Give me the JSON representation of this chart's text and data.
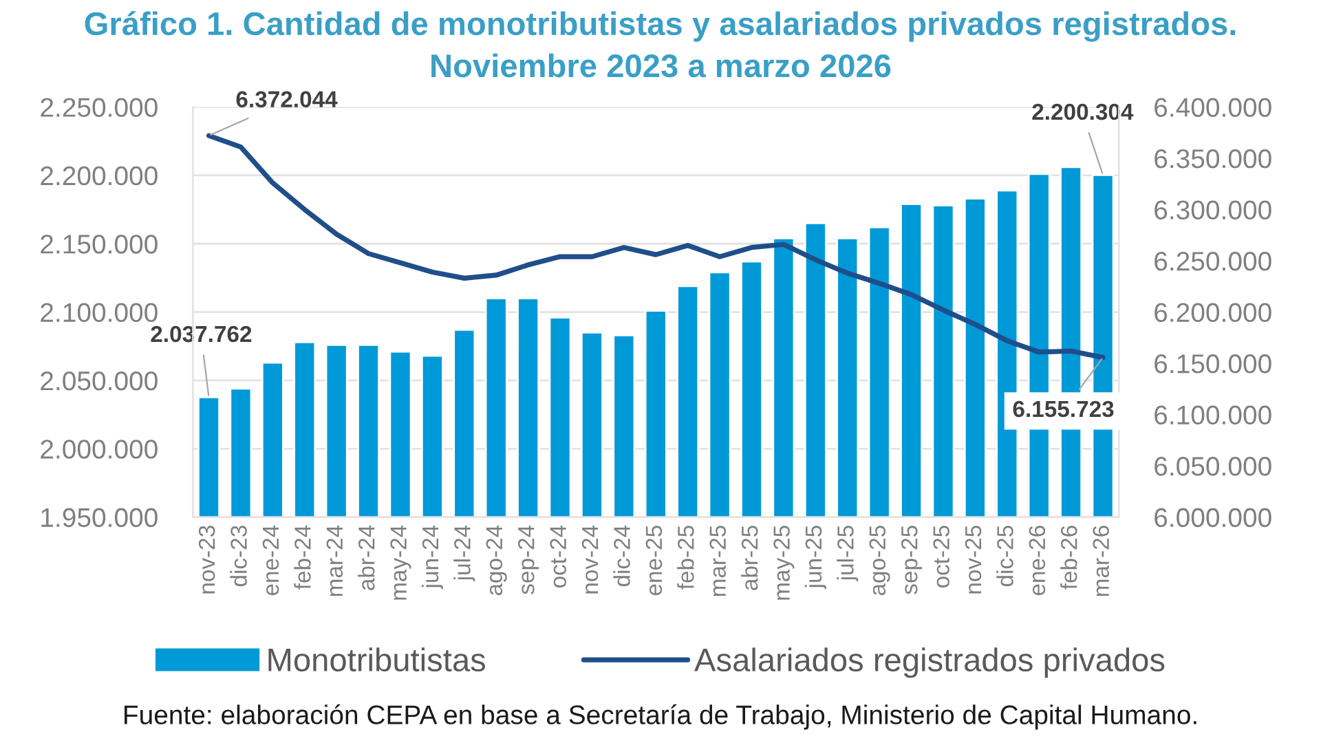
{
  "chart_data": {
    "type": "bar",
    "title": "Gráfico 1. Cantidad de monotributistas y asalariados privados registrados.",
    "subtitle": "Noviembre 2023 a marzo 2026",
    "categories": [
      "nov-23",
      "dic-23",
      "ene-24",
      "feb-24",
      "mar-24",
      "abr-24",
      "may-24",
      "jun-24",
      "jul-24",
      "ago-24",
      "sep-24",
      "oct-24",
      "nov-24",
      "dic-24",
      "ene-25",
      "feb-25",
      "mar-25",
      "abr-25",
      "may-25",
      "jun-25",
      "jul-25",
      "ago-25",
      "sep-25",
      "oct-25",
      "nov-25",
      "dic-25",
      "ene-26",
      "feb-26",
      "mar-26"
    ],
    "series": [
      {
        "name": "Monotributistas",
        "color": "#0099d8",
        "values": [
          2037762,
          2044000,
          2063000,
          2078000,
          2076000,
          2076000,
          2071000,
          2068000,
          2087000,
          2110000,
          2110000,
          2096000,
          2085000,
          2083000,
          2101000,
          2119000,
          2129000,
          2137000,
          2154000,
          2165000,
          2154000,
          2162000,
          2179000,
          2178000,
          2183000,
          2189000,
          2201000,
          2206000,
          2200304
        ],
        "value_labels": [
          "2.037.762",
          null,
          null,
          null,
          null,
          null,
          null,
          null,
          null,
          null,
          null,
          null,
          null,
          null,
          null,
          null,
          null,
          null,
          null,
          null,
          null,
          null,
          null,
          null,
          null,
          null,
          null,
          null,
          "2.200.304"
        ]
      },
      {
        "name": "Asalariados registrados privados",
        "type": "line",
        "axis": "y2",
        "color": "#1f4e8a",
        "values": [
          6372044,
          6361000,
          6326000,
          6300000,
          6276000,
          6257000,
          6248000,
          6239000,
          6233000,
          6236000,
          6246000,
          6254000,
          6254000,
          6263000,
          6256000,
          6265000,
          6254000,
          6263000,
          6266000,
          6251000,
          6238000,
          6228000,
          6217000,
          6202000,
          6188000,
          6172000,
          6161000,
          6162000,
          6155723
        ],
        "value_labels": [
          "6.372.044",
          null,
          null,
          null,
          null,
          null,
          null,
          null,
          null,
          null,
          null,
          null,
          null,
          null,
          null,
          null,
          null,
          null,
          null,
          null,
          null,
          null,
          null,
          null,
          null,
          null,
          null,
          null,
          "6.155.723"
        ]
      }
    ],
    "ylim": [
      1950000,
      2250000
    ],
    "yticks": [
      {
        "value": 1950000,
        "label": "1.950.000"
      },
      {
        "value": 2000000,
        "label": "2.000.000"
      },
      {
        "value": 2050000,
        "label": "2.050.000"
      },
      {
        "value": 2100000,
        "label": "2.100.000"
      },
      {
        "value": 2150000,
        "label": "2.150.000"
      },
      {
        "value": 2200000,
        "label": "2.200.000"
      },
      {
        "value": 2250000,
        "label": "2.250.000"
      }
    ],
    "y2lim": [
      6000000,
      6400000
    ],
    "y2ticks": [
      {
        "value": 6000000,
        "label": "6.000.000"
      },
      {
        "value": 6050000,
        "label": "6.050.000"
      },
      {
        "value": 6100000,
        "label": "6.100.000"
      },
      {
        "value": 6150000,
        "label": "6.150.000"
      },
      {
        "value": 6200000,
        "label": "6.200.000"
      },
      {
        "value": 6250000,
        "label": "6.250.000"
      },
      {
        "value": 6300000,
        "label": "6.300.000"
      },
      {
        "value": 6350000,
        "label": "6.350.000"
      },
      {
        "value": 6400000,
        "label": "6.400.000"
      }
    ],
    "grid": "y",
    "legend": "bottom",
    "annotations": [
      "Fuente: elaboración CEPA en base a Secretaría de Trabajo, Ministerio de Capital Humano."
    ]
  }
}
